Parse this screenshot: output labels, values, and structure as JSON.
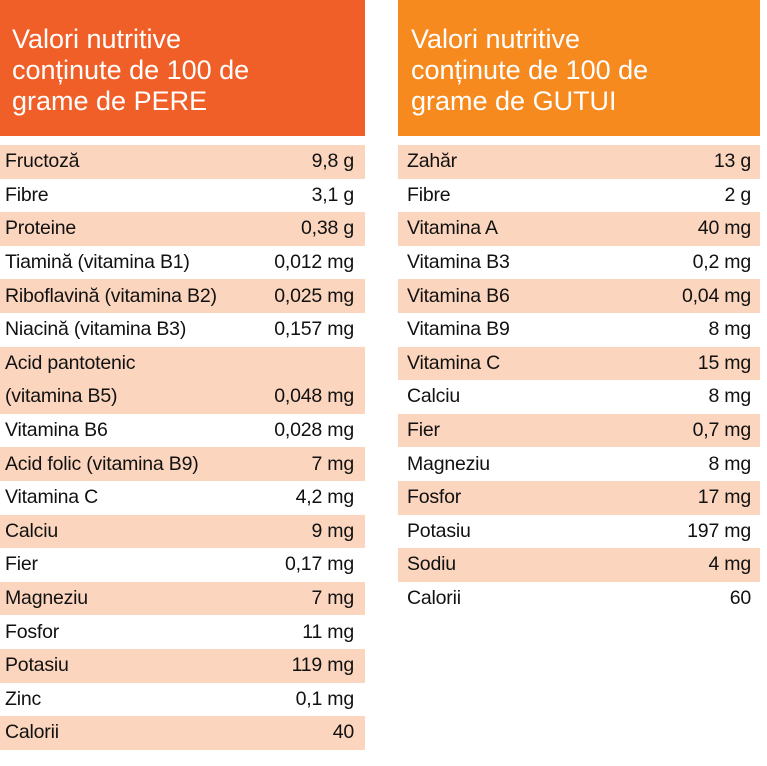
{
  "pere": {
    "title_lines": [
      "Valori nutritive",
      "conținute de 100 de",
      "grame de PERE"
    ],
    "rows": [
      {
        "label": "Fructoză",
        "value": "9,8 g"
      },
      {
        "label": "Fibre",
        "value": "3,1 g"
      },
      {
        "label": "Proteine",
        "value": "0,38 g"
      },
      {
        "label": "Tiamină (vitamina B1)",
        "value": "0,012 mg"
      },
      {
        "label": "Riboflavină (vitamina B2)",
        "value": "0,025 mg"
      },
      {
        "label": "Niacină (vitamina B3)",
        "value": "0,157 mg"
      },
      {
        "label_lines": [
          "Acid pantotenic",
          "(vitamina B5)"
        ],
        "value": "0,048 mg"
      },
      {
        "label": "Vitamina B6",
        "value": "0,028 mg"
      },
      {
        "label": "Acid folic (vitamina B9)",
        "value": "7 mg"
      },
      {
        "label": "Vitamina C",
        "value": "4,2 mg"
      },
      {
        "label": "Calciu",
        "value": "9 mg"
      },
      {
        "label": "Fier",
        "value": "0,17 mg"
      },
      {
        "label": "Magneziu",
        "value": "7 mg"
      },
      {
        "label": "Fosfor",
        "value": "11 mg"
      },
      {
        "label": "Potasiu",
        "value": "119 mg"
      },
      {
        "label": "Zinc",
        "value": "0,1 mg"
      },
      {
        "label": "Calorii",
        "value": "40"
      }
    ]
  },
  "gutui": {
    "title_lines": [
      "Valori nutritive",
      "conținute de 100 de",
      "grame de GUTUI"
    ],
    "rows": [
      {
        "label": "Zahăr",
        "value": "13 g"
      },
      {
        "label": "Fibre",
        "value": "2 g"
      },
      {
        "label": "Vitamina A",
        "value": "40 mg"
      },
      {
        "label": "Vitamina B3",
        "value": "0,2 mg"
      },
      {
        "label": "Vitamina B6",
        "value": "0,04 mg"
      },
      {
        "label": "Vitamina B9",
        "value": "8 mg"
      },
      {
        "label": "Vitamina C",
        "value": "15 mg"
      },
      {
        "label": "Calciu",
        "value": "8 mg"
      },
      {
        "label": "Fier",
        "value": "0,7 mg"
      },
      {
        "label": "Magneziu",
        "value": "8 mg"
      },
      {
        "label": "Fosfor",
        "value": "17 mg"
      },
      {
        "label": "Potasiu",
        "value": "197 mg"
      },
      {
        "label": "Sodiu",
        "value": "4 mg"
      },
      {
        "label": "Calorii",
        "value": "60"
      }
    ]
  },
  "colors": {
    "pere_header": "#f05f28",
    "gutui_header": "#f68a1f",
    "row_highlight": "#fbd5bd",
    "header_text": "#ffffff"
  }
}
